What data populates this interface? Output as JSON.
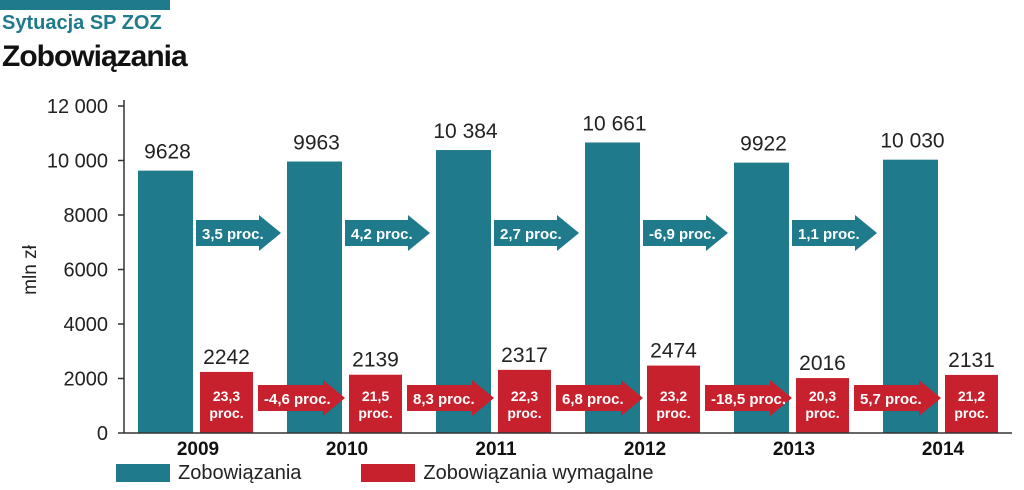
{
  "header": {
    "kicker": "Sytuacja SP ZOZ",
    "title": "Zobowiązania"
  },
  "colors": {
    "teal": "#1f7a8c",
    "red": "#c8212e",
    "accent_bar": "#1f7a8c"
  },
  "chart_data": {
    "type": "bar",
    "ylabel": "mln zł",
    "xlabel": "",
    "ylim": [
      0,
      12000
    ],
    "yticks": [
      0,
      2000,
      4000,
      6000,
      8000,
      10000,
      12000
    ],
    "ytick_labels": [
      "0",
      "2000",
      "4000",
      "6000",
      "8000",
      "10 000",
      "12 000"
    ],
    "categories": [
      "2009",
      "2010",
      "2011",
      "2012",
      "2013",
      "2014"
    ],
    "series": [
      {
        "name": "Zobowiązania",
        "values": [
          9628,
          9963,
          10384,
          10661,
          9922,
          10030
        ],
        "value_labels": [
          "9628",
          "9963",
          "10 384",
          "10 661",
          "9922",
          "10 030"
        ],
        "change_labels": [
          "3,5 proc.",
          "4,2 proc.",
          "2,7 proc.",
          "-6,9 proc.",
          "1,1 proc."
        ]
      },
      {
        "name": "Zobowiązania wymagalne",
        "values": [
          2242,
          2139,
          2317,
          2474,
          2016,
          2131
        ],
        "value_labels": [
          "2242",
          "2139",
          "2317",
          "2474",
          "2016",
          "2131"
        ],
        "share_labels": [
          "23,3 proc.",
          "21,5 proc.",
          "22,3 proc.",
          "23,2 proc.",
          "20,3 proc.",
          "21,2 proc."
        ],
        "change_labels": [
          "-4,6 proc.",
          "8,3 proc.",
          "6,8 proc.",
          "-18,5 proc.",
          "5,7 proc."
        ]
      }
    ],
    "legend_position": "bottom-left",
    "grid": false
  }
}
